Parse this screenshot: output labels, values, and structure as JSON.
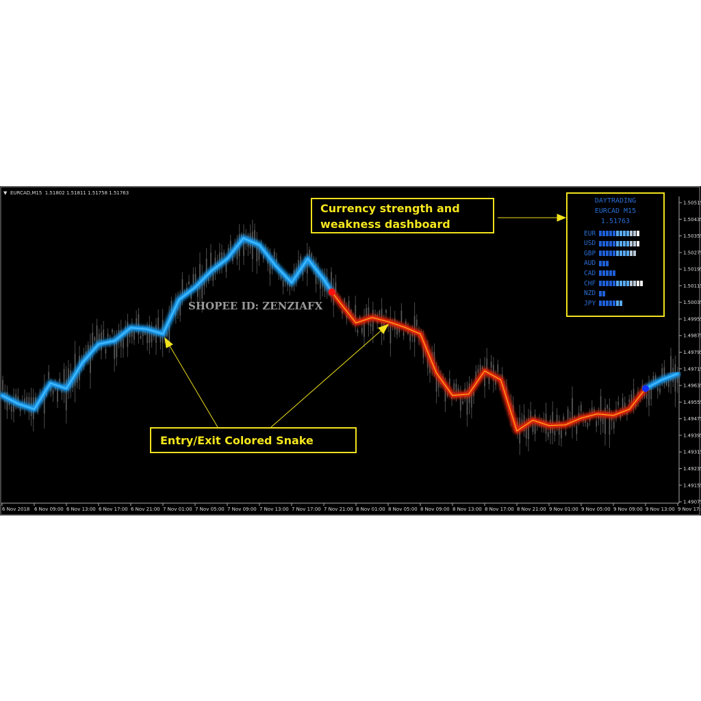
{
  "header": {
    "symbol_info": "EURCAD,M15  1.51802 1.51811 1.51758 1.51763"
  },
  "watermark": "SHOPEE ID: ZENZIAFX",
  "annotations": {
    "dashboard_label_line1": "Currency strength and",
    "dashboard_label_line2": "weakness dashboard",
    "snake_label": "Entry/Exit Colored Snake"
  },
  "dashboard": {
    "title": "DAYTRADING",
    "symbol": "EURCAD M15",
    "price": "1.51763",
    "rows": [
      {
        "currency": "EUR",
        "strength": 12
      },
      {
        "currency": "USD",
        "strength": 12
      },
      {
        "currency": "GBP",
        "strength": 11
      },
      {
        "currency": "AUD",
        "strength": 3
      },
      {
        "currency": "CAD",
        "strength": 5
      },
      {
        "currency": "CHF",
        "strength": 13
      },
      {
        "currency": "NZD",
        "strength": 2
      },
      {
        "currency": "JPY",
        "strength": 7
      }
    ]
  },
  "colors": {
    "background": "#000000",
    "bull_snake": "#1a9cf0",
    "bear_snake": "#e0260a",
    "annotation": "#f2e21c",
    "candles": "#8a8a8a",
    "buy_dot": "#1030ff",
    "sell_dot": "#ff1010"
  },
  "chart_data": {
    "type": "line",
    "title": "",
    "xlabel": "",
    "ylabel": "",
    "ylim": [
      1.49075,
      1.50555
    ],
    "y_ticks": [
      "1.50515",
      "1.50435",
      "1.50355",
      "1.50275",
      "1.50195",
      "1.50115",
      "1.50035",
      "1.49955",
      "1.49875",
      "1.49795",
      "1.49715",
      "1.49635",
      "1.49555",
      "1.49475",
      "1.49395",
      "1.49315",
      "1.49235",
      "1.49155",
      "1.49075"
    ],
    "x_ticks": [
      "6 Nov 2018",
      "6 Nov 09:00",
      "6 Nov 13:00",
      "6 Nov 17:00",
      "6 Nov 21:00",
      "7 Nov 01:00",
      "7 Nov 05:00",
      "7 Nov 09:00",
      "7 Nov 13:00",
      "7 Nov 17:00",
      "7 Nov 21:00",
      "8 Nov 01:00",
      "8 Nov 05:00",
      "8 Nov 09:00",
      "8 Nov 13:00",
      "8 Nov 17:00",
      "8 Nov 21:00",
      "9 Nov 01:00",
      "9 Nov 05:00",
      "9 Nov 09:00",
      "9 Nov 13:00",
      "9 Nov 17:00"
    ],
    "grid": false,
    "series": [
      {
        "trend": "up",
        "color": "#1a9cf0",
        "points": [
          [
            "6 Nov 05:00",
            1.49587
          ],
          [
            "6 Nov 07:00",
            1.49547
          ],
          [
            "6 Nov 09:00",
            1.49521
          ],
          [
            "6 Nov 11:00",
            1.49646
          ],
          [
            "6 Nov 13:00",
            1.4962
          ],
          [
            "6 Nov 15:00",
            1.49745
          ],
          [
            "6 Nov 17:00",
            1.49834
          ],
          [
            "6 Nov 19:00",
            1.4985
          ],
          [
            "6 Nov 21:00",
            1.49913
          ],
          [
            "6 Nov 23:00",
            1.49906
          ],
          [
            "7 Nov 01:00",
            1.49883
          ],
          [
            "7 Nov 03:00",
            1.50048
          ],
          [
            "7 Nov 05:00",
            1.50107
          ],
          [
            "7 Nov 07:00",
            1.50186
          ],
          [
            "7 Nov 09:00",
            1.50245
          ],
          [
            "7 Nov 11:00",
            1.50344
          ],
          [
            "7 Nov 13:00",
            1.50311
          ],
          [
            "7 Nov 15:00",
            1.50212
          ],
          [
            "7 Nov 17:00",
            1.5013
          ],
          [
            "7 Nov 19:00",
            1.50245
          ],
          [
            "7 Nov 21:00",
            1.50146
          ],
          [
            "7 Nov 22:00",
            1.50085
          ]
        ]
      },
      {
        "trend": "down",
        "color": "#e0260a",
        "points": [
          [
            "7 Nov 22:00",
            1.50085
          ],
          [
            "7 Nov 23:00",
            1.50034
          ],
          [
            "8 Nov 01:00",
            1.49936
          ],
          [
            "8 Nov 03:00",
            1.49962
          ],
          [
            "8 Nov 05:00",
            1.49942
          ],
          [
            "8 Nov 07:00",
            1.49916
          ],
          [
            "8 Nov 09:00",
            1.49883
          ],
          [
            "8 Nov 11:00",
            1.49695
          ],
          [
            "8 Nov 13:00",
            1.49587
          ],
          [
            "8 Nov 15:00",
            1.49593
          ],
          [
            "8 Nov 17:00",
            1.49705
          ],
          [
            "8 Nov 19:00",
            1.49662
          ],
          [
            "8 Nov 21:00",
            1.49416
          ],
          [
            "8 Nov 23:00",
            1.49468
          ],
          [
            "9 Nov 01:00",
            1.49442
          ],
          [
            "9 Nov 03:00",
            1.49445
          ],
          [
            "9 Nov 05:00",
            1.49478
          ],
          [
            "9 Nov 07:00",
            1.49498
          ],
          [
            "9 Nov 09:00",
            1.49491
          ],
          [
            "9 Nov 11:00",
            1.49521
          ],
          [
            "9 Nov 13:00",
            1.4962
          ]
        ]
      },
      {
        "trend": "up",
        "color": "#1a9cf0",
        "points": [
          [
            "9 Nov 13:00",
            1.4962
          ],
          [
            "9 Nov 15:00",
            1.49662
          ],
          [
            "9 Nov 17:00",
            1.49692
          ]
        ]
      }
    ],
    "signals": [
      {
        "type": "sell",
        "time": "7 Nov 22:00",
        "price": 1.50085,
        "color": "#ff1010"
      },
      {
        "type": "buy",
        "time": "9 Nov 13:00",
        "price": 1.4962,
        "color": "#1030ff"
      }
    ]
  }
}
